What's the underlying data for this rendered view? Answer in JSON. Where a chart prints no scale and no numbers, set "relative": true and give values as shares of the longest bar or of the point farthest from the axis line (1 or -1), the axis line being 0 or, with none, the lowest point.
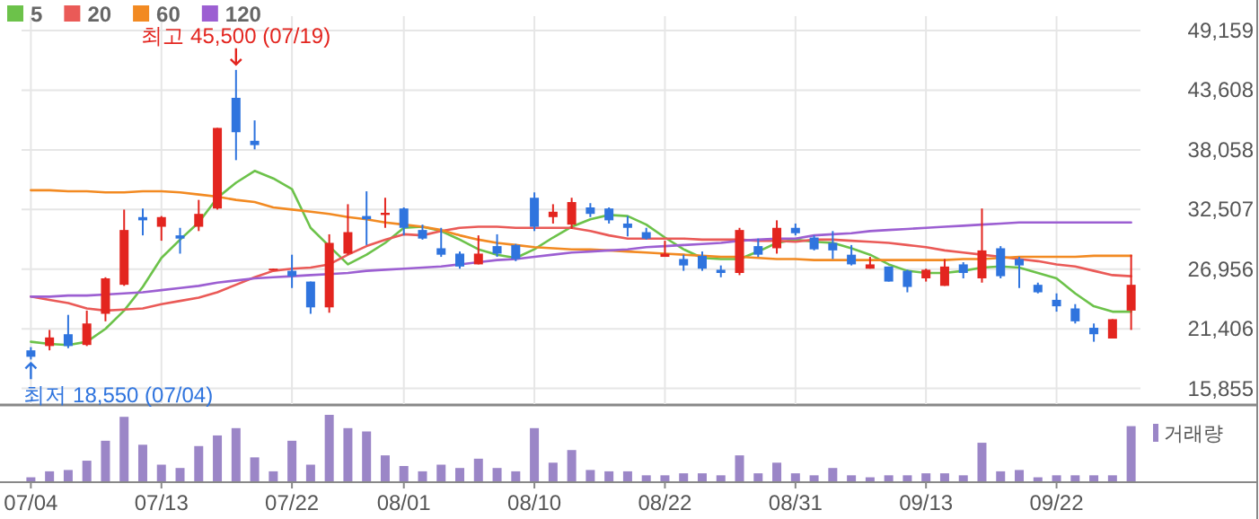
{
  "chart_data": [
    {
      "type": "candlestick",
      "categories": [
        "07/04",
        null,
        null,
        null,
        null,
        null,
        null,
        "07/13",
        null,
        null,
        null,
        null,
        null,
        null,
        "07/22",
        null,
        null,
        null,
        null,
        null,
        "08/01",
        null,
        null,
        null,
        null,
        null,
        null,
        "08/10",
        null,
        null,
        null,
        null,
        null,
        null,
        "08/22",
        null,
        null,
        null,
        null,
        null,
        null,
        "08/31",
        null,
        null,
        null,
        null,
        null,
        null,
        "09/13",
        null,
        null,
        null,
        null,
        null,
        null,
        "09/22",
        null,
        null,
        null,
        null
      ],
      "ohlc": [
        [
          19400,
          19700,
          18550,
          18800
        ],
        [
          19800,
          21300,
          19400,
          20600
        ],
        [
          20900,
          22700,
          19600,
          19800
        ],
        [
          19900,
          23100,
          19800,
          21900
        ],
        [
          22800,
          26200,
          22100,
          26100
        ],
        [
          25500,
          32500,
          25400,
          30600
        ],
        [
          31800,
          32600,
          30100,
          31500
        ],
        [
          30900,
          31900,
          29600,
          31800
        ],
        [
          30100,
          30800,
          28400,
          29800
        ],
        [
          30900,
          33400,
          30500,
          32100
        ],
        [
          32600,
          40100,
          32500,
          40100
        ],
        [
          42900,
          45500,
          37100,
          39700
        ],
        [
          38900,
          40800,
          38100,
          38500
        ],
        [
          26900,
          27000,
          26900,
          27000
        ],
        [
          26800,
          28300,
          25200,
          26300
        ],
        [
          25800,
          25800,
          22800,
          23400
        ],
        [
          23400,
          30200,
          22900,
          29400
        ],
        [
          28400,
          33000,
          28300,
          30400
        ],
        [
          31900,
          34200,
          29200,
          31600
        ],
        [
          32000,
          33600,
          30800,
          32200
        ],
        [
          32600,
          32700,
          30100,
          30800
        ],
        [
          30600,
          31100,
          29700,
          29800
        ],
        [
          28900,
          30800,
          28100,
          28300
        ],
        [
          28400,
          28600,
          27000,
          27200
        ],
        [
          27400,
          30100,
          27400,
          28400
        ],
        [
          29100,
          30200,
          28100,
          28400
        ],
        [
          29200,
          29300,
          27700,
          27900
        ],
        [
          33600,
          34100,
          30500,
          30900
        ],
        [
          31800,
          33000,
          31200,
          32300
        ],
        [
          31100,
          33600,
          30700,
          33200
        ],
        [
          32700,
          33100,
          31800,
          32100
        ],
        [
          32600,
          32700,
          31200,
          31500
        ],
        [
          31200,
          31900,
          30000,
          30800
        ],
        [
          30400,
          30800,
          29700,
          29800
        ],
        [
          28100,
          29600,
          28100,
          28400
        ],
        [
          27900,
          28300,
          26800,
          27300
        ],
        [
          28200,
          28600,
          26800,
          27000
        ],
        [
          26900,
          27300,
          26200,
          26600
        ],
        [
          26600,
          30800,
          26400,
          30600
        ],
        [
          29100,
          29800,
          28100,
          28300
        ],
        [
          28900,
          31500,
          28400,
          30800
        ],
        [
          30800,
          31200,
          30100,
          30300
        ],
        [
          29900,
          30100,
          28700,
          28800
        ],
        [
          29400,
          30500,
          27900,
          28700
        ],
        [
          28300,
          29200,
          27300,
          27400
        ],
        [
          27000,
          28100,
          27000,
          27400
        ],
        [
          27200,
          27200,
          25800,
          25800
        ],
        [
          26800,
          26900,
          24800,
          25300
        ],
        [
          26100,
          27000,
          25800,
          26900
        ],
        [
          25400,
          27900,
          25400,
          27200
        ],
        [
          27400,
          27600,
          26100,
          26600
        ],
        [
          26100,
          32600,
          25700,
          28700
        ],
        [
          28900,
          29100,
          26100,
          26300
        ],
        [
          27900,
          28100,
          25200,
          27300
        ],
        [
          25500,
          25700,
          24700,
          24800
        ],
        [
          24100,
          24700,
          23000,
          23500
        ],
        [
          23300,
          23700,
          21900,
          22100
        ],
        [
          21500,
          21900,
          20200,
          20900
        ],
        [
          20500,
          22300,
          20500,
          22300
        ],
        [
          23100,
          28300,
          21300,
          25500
        ]
      ],
      "series": [
        {
          "name": "5",
          "type": "line",
          "color": "#6cc24a",
          "values": [
            20200,
            20000,
            19900,
            20200,
            21400,
            23100,
            25300,
            28000,
            29700,
            31300,
            33600,
            35000,
            36100,
            35400,
            34400,
            30800,
            29100,
            27400,
            28300,
            29400,
            30800,
            30900,
            30500,
            29700,
            28800,
            28300,
            28000,
            28800,
            29900,
            30900,
            31600,
            32000,
            31900,
            31100,
            29900,
            28800,
            28000,
            27900,
            27900,
            28600,
            29400,
            29700,
            29500,
            29400,
            28900,
            28300,
            27400,
            26800,
            26600,
            26600,
            26800,
            27100,
            27200,
            27100,
            26600,
            26100,
            24700,
            23500,
            23000,
            23000
          ]
        },
        {
          "name": "20",
          "type": "line",
          "color": "#ea5a57",
          "values": [
            24400,
            24100,
            23800,
            23300,
            23100,
            23200,
            23300,
            23700,
            24000,
            24300,
            24800,
            25500,
            26200,
            26800,
            27000,
            27100,
            27400,
            28300,
            29100,
            29700,
            30200,
            30100,
            30500,
            30800,
            30900,
            30900,
            30800,
            30800,
            30800,
            30800,
            30500,
            30100,
            29800,
            29800,
            29800,
            29800,
            29700,
            29700,
            29700,
            29600,
            29600,
            29500,
            29700,
            29700,
            29600,
            29500,
            29400,
            29200,
            29000,
            28700,
            28500,
            28300,
            28100,
            27900,
            27700,
            27400,
            27200,
            26800,
            26400,
            26300
          ]
        },
        {
          "name": "60",
          "type": "line",
          "color": "#f28a22",
          "values": [
            34300,
            34300,
            34200,
            34200,
            34100,
            34100,
            34200,
            34200,
            34100,
            33900,
            33700,
            33400,
            33200,
            32700,
            32500,
            32300,
            32100,
            31800,
            31600,
            31300,
            31100,
            30900,
            30600,
            30100,
            29700,
            29400,
            29200,
            29000,
            28900,
            28800,
            28800,
            28700,
            28600,
            28500,
            28400,
            28300,
            28200,
            28100,
            28100,
            28000,
            27900,
            27900,
            27800,
            27800,
            27800,
            27800,
            27800,
            27800,
            27800,
            27800,
            27900,
            27900,
            28000,
            28100,
            28100,
            28100,
            28100,
            28200,
            28200,
            28200
          ]
        },
        {
          "name": "120",
          "type": "line",
          "color": "#9c5fd2",
          "values": [
            24400,
            24400,
            24500,
            24500,
            24600,
            24700,
            24800,
            25000,
            25200,
            25400,
            25700,
            25900,
            26100,
            26200,
            26300,
            26400,
            26500,
            26600,
            26800,
            26900,
            27000,
            27100,
            27200,
            27400,
            27600,
            27800,
            27900,
            28100,
            28300,
            28500,
            28600,
            28700,
            28800,
            29000,
            29100,
            29200,
            29300,
            29400,
            29600,
            29700,
            29800,
            29800,
            30100,
            30200,
            30300,
            30500,
            30600,
            30700,
            30800,
            30900,
            31000,
            31100,
            31200,
            31300,
            31300,
            31300,
            31300,
            31300,
            31300,
            31300
          ]
        }
      ],
      "ylim": [
        14400,
        50500
      ],
      "yticks": [
        {
          "value": 15855,
          "label": "15,855"
        },
        {
          "value": 21406,
          "label": "21,406"
        },
        {
          "value": 26956,
          "label": "26,956"
        },
        {
          "value": 32507,
          "label": "32,507"
        },
        {
          "value": 38058,
          "label": "38,058"
        },
        {
          "value": 43608,
          "label": "43,608"
        },
        {
          "value": 49159,
          "label": "49,159"
        }
      ],
      "grid": true,
      "legend": "top left",
      "tick_labels": "y",
      "annotations": [
        {
          "text": "최고 45,500 (07/19)",
          "y": 45500
        },
        {
          "text": "최저 18,550 (07/04)",
          "x": "07/04",
          "y": 18550
        }
      ]
    },
    {
      "type": "bar",
      "relative": true,
      "legend": "right",
      "categories": [
        "07/04",
        null,
        null,
        null,
        null,
        null,
        null,
        "07/13",
        null,
        null,
        null,
        null,
        null,
        null,
        "07/22",
        null,
        null,
        null,
        null,
        null,
        "08/01",
        null,
        null,
        null,
        null,
        null,
        null,
        "08/10",
        null,
        null,
        null,
        null,
        null,
        null,
        "08/22",
        null,
        null,
        null,
        null,
        null,
        null,
        "08/31",
        null,
        null,
        null,
        null,
        null,
        null,
        "09/13",
        null,
        null,
        null,
        null,
        null,
        null,
        "09/22",
        null,
        null,
        null,
        null
      ],
      "series": [
        {
          "name": "거래량",
          "color": "#9b86c7",
          "values": [
            0.06,
            0.15,
            0.17,
            0.31,
            0.61,
            0.97,
            0.55,
            0.25,
            0.2,
            0.53,
            0.69,
            0.8,
            0.36,
            0.15,
            0.61,
            0.25,
            1,
            0.8,
            0.75,
            0.39,
            0.23,
            0.15,
            0.25,
            0.2,
            0.34,
            0.2,
            0.15,
            0.8,
            0.28,
            0.47,
            0.17,
            0.15,
            0.15,
            0.09,
            0.09,
            0.12,
            0.12,
            0.09,
            0.39,
            0.12,
            0.28,
            0.12,
            0.09,
            0.2,
            0.09,
            0.06,
            0.09,
            0.09,
            0.12,
            0.12,
            0.09,
            0.58,
            0.15,
            0.17,
            0.06,
            0.09,
            0.09,
            0.09,
            0.09,
            0.83
          ]
        }
      ]
    }
  ]
}
